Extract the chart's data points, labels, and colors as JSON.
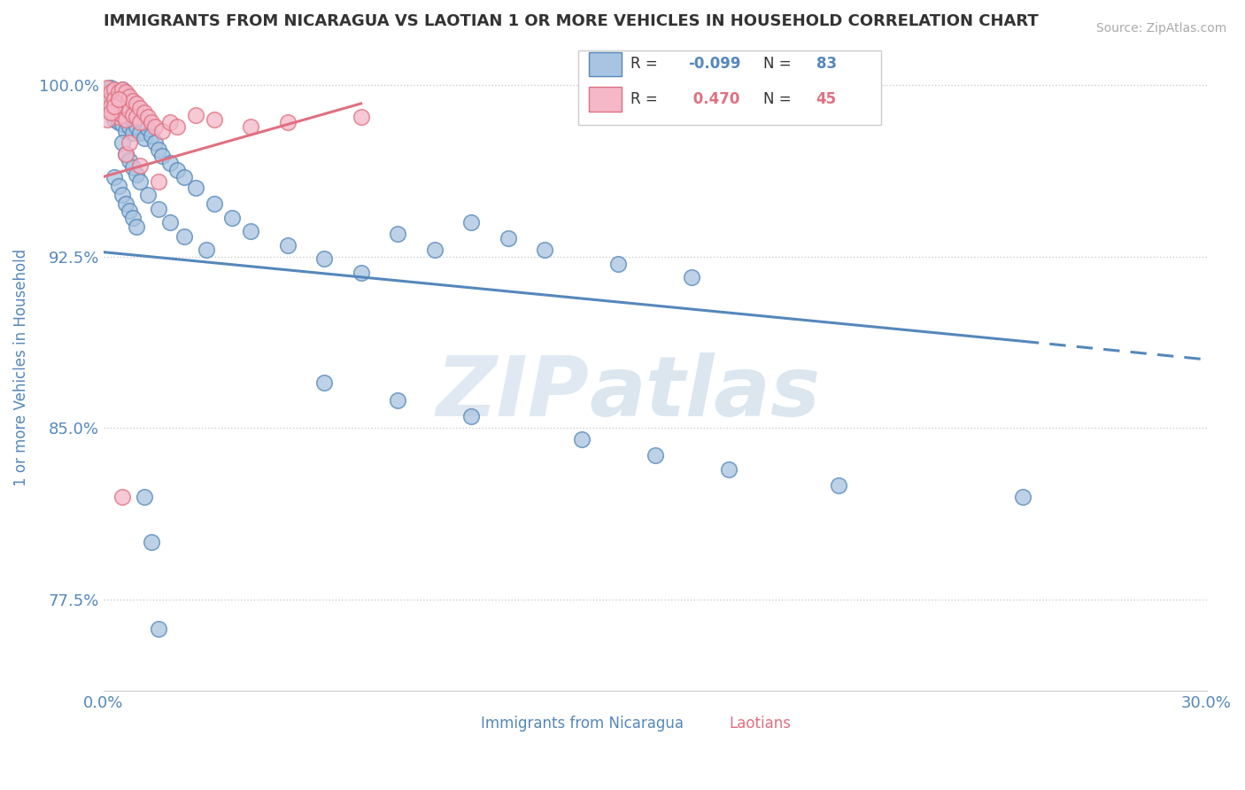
{
  "title": "IMMIGRANTS FROM NICARAGUA VS LAOTIAN 1 OR MORE VEHICLES IN HOUSEHOLD CORRELATION CHART",
  "source_text": "Source: ZipAtlas.com",
  "xlabel": "",
  "ylabel": "1 or more Vehicles in Household",
  "xlim": [
    0.0,
    0.3
  ],
  "ylim": [
    0.735,
    1.018
  ],
  "xticks": [
    0.0,
    0.05,
    0.1,
    0.15,
    0.2,
    0.25,
    0.3
  ],
  "xticklabels": [
    "0.0%",
    "",
    "",
    "",
    "",
    "",
    "30.0%"
  ],
  "yticks": [
    0.775,
    0.85,
    0.925,
    1.0
  ],
  "yticklabels": [
    "77.5%",
    "85.0%",
    "92.5%",
    "100.0%"
  ],
  "legend_label1": "Immigrants from Nicaragua",
  "legend_label2": "Laotians",
  "r1_val": "-0.099",
  "n1_val": "83",
  "r2_val": "0.470",
  "n2_val": "45",
  "color1": "#a8c4e0",
  "color2": "#f4b8c8",
  "line1_color": "#5588bb",
  "line2_color": "#e07080",
  "blue_scatter_x": [
    0.001,
    0.001,
    0.002,
    0.002,
    0.002,
    0.003,
    0.003,
    0.003,
    0.003,
    0.004,
    0.004,
    0.004,
    0.005,
    0.005,
    0.005,
    0.005,
    0.006,
    0.006,
    0.006,
    0.006,
    0.007,
    0.007,
    0.007,
    0.008,
    0.008,
    0.008,
    0.009,
    0.009,
    0.01,
    0.01,
    0.011,
    0.011,
    0.012,
    0.013,
    0.014,
    0.015,
    0.016,
    0.018,
    0.02,
    0.022,
    0.025,
    0.03,
    0.035,
    0.04,
    0.05,
    0.06,
    0.07,
    0.08,
    0.09,
    0.1,
    0.11,
    0.12,
    0.14,
    0.16,
    0.005,
    0.006,
    0.007,
    0.008,
    0.009,
    0.01,
    0.012,
    0.015,
    0.018,
    0.022,
    0.028,
    0.06,
    0.08,
    0.1,
    0.13,
    0.15,
    0.17,
    0.2,
    0.25,
    0.003,
    0.004,
    0.005,
    0.006,
    0.007,
    0.008,
    0.009,
    0.011,
    0.013,
    0.015
  ],
  "blue_scatter_y": [
    0.997,
    0.992,
    0.999,
    0.995,
    0.988,
    0.996,
    0.993,
    0.988,
    0.985,
    0.997,
    0.99,
    0.984,
    0.998,
    0.994,
    0.989,
    0.983,
    0.996,
    0.991,
    0.986,
    0.98,
    0.993,
    0.988,
    0.982,
    0.99,
    0.985,
    0.979,
    0.988,
    0.982,
    0.986,
    0.979,
    0.984,
    0.977,
    0.981,
    0.978,
    0.975,
    0.972,
    0.969,
    0.966,
    0.963,
    0.96,
    0.955,
    0.948,
    0.942,
    0.936,
    0.93,
    0.924,
    0.918,
    0.935,
    0.928,
    0.94,
    0.933,
    0.928,
    0.922,
    0.916,
    0.975,
    0.97,
    0.967,
    0.964,
    0.961,
    0.958,
    0.952,
    0.946,
    0.94,
    0.934,
    0.928,
    0.87,
    0.862,
    0.855,
    0.845,
    0.838,
    0.832,
    0.825,
    0.82,
    0.96,
    0.956,
    0.952,
    0.948,
    0.945,
    0.942,
    0.938,
    0.82,
    0.8,
    0.762
  ],
  "pink_scatter_x": [
    0.001,
    0.001,
    0.002,
    0.002,
    0.003,
    0.003,
    0.003,
    0.004,
    0.004,
    0.004,
    0.005,
    0.005,
    0.005,
    0.006,
    0.006,
    0.006,
    0.007,
    0.007,
    0.008,
    0.008,
    0.009,
    0.009,
    0.01,
    0.01,
    0.011,
    0.012,
    0.013,
    0.014,
    0.016,
    0.018,
    0.02,
    0.025,
    0.03,
    0.04,
    0.05,
    0.07,
    0.001,
    0.002,
    0.003,
    0.004,
    0.005,
    0.006,
    0.007,
    0.01,
    0.015
  ],
  "pink_scatter_y": [
    0.999,
    0.993,
    0.997,
    0.991,
    0.998,
    0.994,
    0.988,
    0.997,
    0.992,
    0.986,
    0.998,
    0.993,
    0.987,
    0.997,
    0.991,
    0.985,
    0.995,
    0.989,
    0.993,
    0.987,
    0.992,
    0.986,
    0.99,
    0.984,
    0.988,
    0.986,
    0.984,
    0.982,
    0.98,
    0.984,
    0.982,
    0.987,
    0.985,
    0.982,
    0.984,
    0.986,
    0.985,
    0.988,
    0.991,
    0.994,
    0.82,
    0.97,
    0.975,
    0.965,
    0.958
  ],
  "blue_trend_x0": 0.0,
  "blue_trend_y0": 0.927,
  "blue_trend_x1": 0.25,
  "blue_trend_y1": 0.888,
  "blue_trend_x2": 0.3,
  "blue_trend_y2": 0.88,
  "pink_trend_x0": 0.0,
  "pink_trend_y0": 0.96,
  "pink_trend_x1": 0.07,
  "pink_trend_y1": 0.992,
  "watermark_zip": "ZIP",
  "watermark_atlas": "atlas",
  "background_color": "#ffffff",
  "title_color": "#333333",
  "axis_label_color": "#5588bb",
  "tick_label_color": "#5588bb",
  "grid_color": "#cccccc"
}
